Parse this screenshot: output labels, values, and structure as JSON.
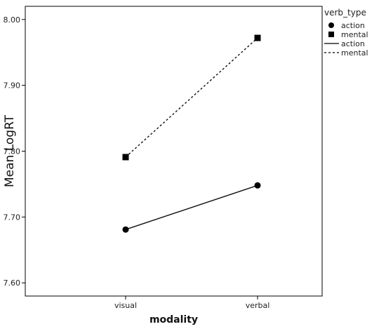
{
  "chart_data": {
    "type": "line",
    "title": "",
    "xlabel": "modality",
    "ylabel": "Mean LogRT",
    "categories": [
      "visual",
      "verbal"
    ],
    "ylim": [
      7.58,
      8.02
    ],
    "yticks": [
      "7.60",
      "7.70",
      "7.80",
      "7.90",
      "8.00"
    ],
    "ytick_values": [
      7.6,
      7.7,
      7.8,
      7.9,
      8.0
    ],
    "grid": false,
    "legend_position": "top-right",
    "legend_title": "verb_type",
    "series": [
      {
        "name": "action",
        "values": [
          7.681,
          7.748
        ],
        "marker": "circle",
        "line": "solid"
      },
      {
        "name": "mental",
        "values": [
          7.791,
          7.972
        ],
        "marker": "square",
        "line": "dashed"
      }
    ],
    "legend_entries": [
      {
        "label": "action",
        "kind": "circle-marker"
      },
      {
        "label": "mental",
        "kind": "square-marker"
      },
      {
        "label": "action",
        "kind": "solid-line"
      },
      {
        "label": "mental",
        "kind": "dashed-line"
      }
    ],
    "colors": {
      "series": "#000000",
      "axis": "#000000"
    }
  }
}
